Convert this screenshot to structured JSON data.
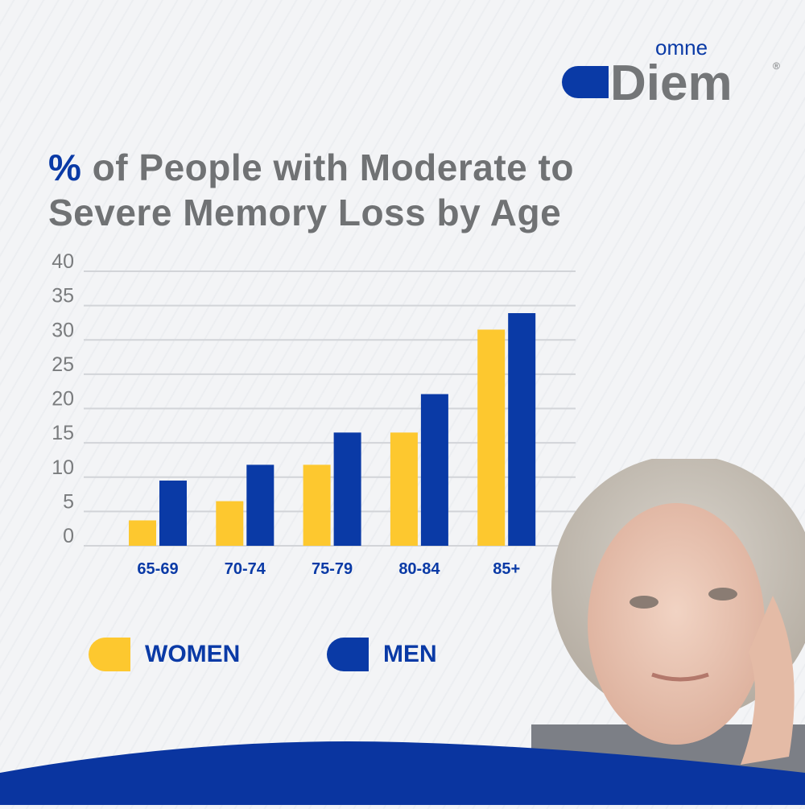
{
  "brand": {
    "small": "omne",
    "large": "Diem",
    "registered": "®",
    "color_blue": "#0a3aa6",
    "color_gray": "#747678"
  },
  "title": {
    "highlight": "%",
    "rest_line1": " of People with Moderate to",
    "line2": "Severe Memory Loss by Age"
  },
  "chart_data": {
    "type": "bar",
    "title": "% of People with Moderate to Severe Memory Loss by Age",
    "categories": [
      "65-69",
      "70-74",
      "75-79",
      "80-84",
      "85+"
    ],
    "series": [
      {
        "name": "WOMEN",
        "color": "#fdc82f",
        "values": [
          3.7,
          6.5,
          11.8,
          16.5,
          31.5
        ]
      },
      {
        "name": "MEN",
        "color": "#0a3aa6",
        "values": [
          9.5,
          11.8,
          16.5,
          22.1,
          33.9
        ]
      }
    ],
    "yticks": [
      0,
      5,
      10,
      15,
      20,
      25,
      30,
      35,
      40
    ],
    "ylim": [
      0,
      40
    ],
    "grid": true,
    "legend_position": "bottom-left"
  },
  "legend": [
    {
      "label": "WOMEN",
      "color": "#fdc82f"
    },
    {
      "label": "MEN",
      "color": "#0a3aa6"
    }
  ]
}
